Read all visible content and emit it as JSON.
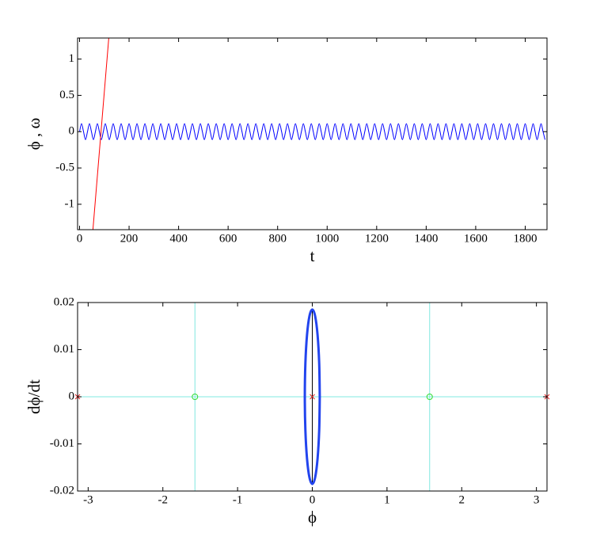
{
  "chart_data": [
    {
      "type": "line",
      "xlabel": "t",
      "ylabel": "ϕ , ω",
      "xlim": [
        -8,
        1888
      ],
      "ylim": [
        -1.35,
        1.29
      ],
      "xticks": [
        0,
        200,
        400,
        600,
        800,
        1000,
        1200,
        1400,
        1600,
        1800
      ],
      "yticks": [
        -1,
        -0.5,
        0,
        0.5,
        1
      ],
      "series": [
        {
          "color": "#0000ff",
          "line_width": 1,
          "x": [
            0,
            8,
            16,
            24,
            32,
            40,
            48,
            56,
            64,
            72,
            80,
            88,
            96,
            104,
            112,
            120,
            128,
            136,
            144,
            152,
            160,
            168,
            176,
            184,
            192,
            200,
            208,
            216,
            224,
            232,
            240,
            248,
            256,
            264,
            272,
            280,
            288,
            296,
            304,
            312,
            320,
            328,
            336,
            344,
            352,
            360,
            368,
            376,
            384,
            392,
            400,
            408,
            416,
            424,
            432,
            440,
            448,
            456,
            464,
            472,
            480,
            488,
            496,
            504,
            512,
            520,
            528,
            536,
            544,
            552,
            560,
            568,
            576,
            584,
            592,
            600,
            608,
            616,
            624,
            632,
            640,
            648,
            656,
            664,
            672,
            680,
            688,
            696,
            704,
            712,
            720,
            728,
            736,
            744,
            752,
            760,
            768,
            776,
            784,
            792,
            800,
            808,
            816,
            824,
            832,
            840,
            848,
            856,
            864,
            872,
            880,
            888,
            896,
            904,
            912,
            920,
            928,
            936,
            944,
            952,
            960,
            968,
            976,
            984,
            992,
            1000,
            1008,
            1016,
            1024,
            1032,
            1040,
            1048,
            1056,
            1064,
            1072,
            1080,
            1088,
            1096,
            1104,
            1112,
            1120,
            1128,
            1136,
            1144,
            1152,
            1160,
            1168,
            1176,
            1184,
            1192,
            1200,
            1208,
            1216,
            1224,
            1232,
            1240,
            1248,
            1256,
            1264,
            1272,
            1280,
            1288,
            1296,
            1304,
            1312,
            1320,
            1328,
            1336,
            1344,
            1352,
            1360,
            1368,
            1376,
            1384,
            1392,
            1400,
            1408,
            1416,
            1424,
            1432,
            1440,
            1448,
            1456,
            1464,
            1472,
            1480,
            1488,
            1496,
            1504,
            1512,
            1520,
            1528,
            1536,
            1544,
            1552,
            1560,
            1568,
            1576,
            1584,
            1592,
            1600,
            1608,
            1616,
            1624,
            1632,
            1640,
            1648,
            1656,
            1664,
            1672,
            1680,
            1688,
            1696,
            1704,
            1712,
            1720,
            1728,
            1736,
            1744,
            1752,
            1760,
            1768,
            1776,
            1784,
            1792,
            1800,
            1808,
            1816,
            1824,
            1832,
            1840,
            1848,
            1856,
            1864,
            1872,
            1880
          ],
          "values": [
            0,
            0.11,
            0,
            -0.11,
            0,
            0.11,
            0,
            -0.11,
            0,
            0.11,
            0,
            -0.11,
            0,
            0.11,
            0,
            -0.11,
            0,
            0.11,
            0,
            -0.11,
            0,
            0.11,
            0,
            -0.11,
            0,
            0.11,
            0,
            -0.11,
            0,
            0.11,
            0,
            -0.11,
            0,
            0.11,
            0,
            -0.11,
            0,
            0.11,
            0,
            -0.11,
            0,
            0.11,
            0,
            -0.11,
            0,
            0.11,
            0,
            -0.11,
            0,
            0.11,
            0,
            -0.11,
            0,
            0.11,
            0,
            -0.11,
            0,
            0.11,
            0,
            -0.11,
            0,
            0.11,
            0,
            -0.11,
            0,
            0.11,
            0,
            -0.11,
            0,
            0.11,
            0,
            -0.11,
            0,
            0.11,
            0,
            -0.11,
            0,
            0.11,
            0,
            -0.11,
            0,
            0.11,
            0,
            -0.11,
            0,
            0.11,
            0,
            -0.11,
            0,
            0.11,
            0,
            -0.11,
            0,
            0.11,
            0,
            -0.11,
            0,
            0.11,
            0,
            -0.11,
            0,
            0.11,
            0,
            -0.11,
            0,
            0.11,
            0,
            -0.11,
            0,
            0.11,
            0,
            -0.11,
            0,
            0.11,
            0,
            -0.11,
            0,
            0.11,
            0,
            -0.11,
            0,
            0.11,
            0,
            -0.11,
            0,
            0.11,
            0,
            -0.11,
            0,
            0.11,
            0,
            -0.11,
            0,
            0.11,
            0,
            -0.11,
            0,
            0.11,
            0,
            -0.11,
            0,
            0.11,
            0,
            -0.11,
            0,
            0.11,
            0,
            -0.11,
            0,
            0.11,
            0,
            -0.11,
            0,
            0.11,
            0,
            -0.11,
            0,
            0.11,
            0,
            -0.11,
            0,
            0.11,
            0,
            -0.11,
            0,
            0.11,
            0,
            -0.11,
            0,
            0.11,
            0,
            -0.11,
            0,
            0.11,
            0,
            -0.11,
            0,
            0.11,
            0,
            -0.11,
            0,
            0.11,
            0,
            -0.11,
            0,
            0.11,
            0,
            -0.11,
            0,
            0.11,
            0,
            -0.11,
            0,
            0.11,
            0,
            -0.11,
            0,
            0.11,
            0,
            -0.11,
            0,
            0.11,
            0,
            -0.11,
            0,
            0.11,
            0,
            -0.11,
            0,
            0.11,
            0,
            -0.11,
            0,
            0.11,
            0,
            -0.11,
            0,
            0.11,
            0,
            -0.11,
            0,
            0.11,
            0,
            -0.11,
            0,
            0.11,
            0,
            -0.11,
            0,
            0.11,
            0,
            -0.11,
            0,
            0.11,
            0,
            -0.11
          ]
        },
        {
          "color": "#ff0000",
          "line_width": 1,
          "x": [
            54,
            118
          ],
          "values": [
            -1.35,
            1.29
          ]
        }
      ]
    },
    {
      "type": "line",
      "xlabel": "ϕ",
      "ylabel": "dϕ/dt",
      "xlim": [
        -3.1416,
        3.1416
      ],
      "ylim": [
        -0.02,
        0.02
      ],
      "xticks": [
        -3,
        -2,
        -1,
        0,
        1,
        2,
        3
      ],
      "yticks": [
        -0.02,
        -0.01,
        0,
        0.01,
        0.02
      ],
      "vlines": [
        {
          "x": -1.5708,
          "color": "#80e8e0"
        },
        {
          "x": 1.5708,
          "color": "#80e8e0"
        }
      ],
      "hlines": [
        {
          "y": 0,
          "color": "#80e8e0"
        }
      ],
      "series": [
        {
          "color": "#000000",
          "line_width": 1,
          "x": [
            0,
            0
          ],
          "values": [
            -0.0185,
            0.0185
          ]
        },
        {
          "color": "#2244ee",
          "line_width": 3,
          "x": [
            0.1,
            0.0924,
            0.0707,
            0.0383,
            0,
            -0.0383,
            -0.0707,
            -0.0924,
            -0.1,
            -0.0924,
            -0.0707,
            -0.0383,
            0,
            0.0383,
            0.0707,
            0.0924,
            0.1
          ],
          "values": [
            0,
            0.0071,
            0.0131,
            0.0171,
            0.0185,
            0.0171,
            0.0131,
            0.0071,
            0,
            -0.0071,
            -0.0131,
            -0.0171,
            -0.0185,
            -0.0171,
            -0.0131,
            -0.0071,
            0
          ]
        },
        {
          "color": "#33dd33",
          "marker": "o",
          "x": [
            -1.5708,
            1.5708
          ],
          "values": [
            0,
            0
          ]
        },
        {
          "color": "#dd2222",
          "marker": "x",
          "x": [
            -3.1416,
            0,
            3.1416
          ],
          "values": [
            0,
            0,
            0
          ]
        }
      ]
    }
  ]
}
